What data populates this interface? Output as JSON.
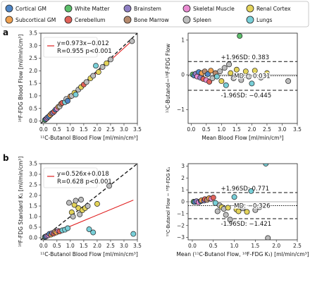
{
  "panel_labels": [
    "a",
    "b"
  ],
  "legend": [
    {
      "label": "Cortical GM",
      "color": "#4f86c6"
    },
    {
      "label": "White Matter",
      "color": "#5cbf6b"
    },
    {
      "label": "Brainstem",
      "color": "#8f7fc4"
    },
    {
      "label": "Skeletal Muscle",
      "color": "#e98bd1"
    },
    {
      "label": "Renal Cortex",
      "color": "#e3d35a"
    },
    {
      "label": "Subcortical GM",
      "color": "#f0a150"
    },
    {
      "label": "Cerebellum",
      "color": "#e0625a"
    },
    {
      "label": "Bone Marrow",
      "color": "#b58a6e"
    },
    {
      "label": "Spleen",
      "color": "#bdbdbd"
    },
    {
      "label": "Lungs",
      "color": "#78cfd8"
    }
  ],
  "chart_data": [
    {
      "id": "a-left",
      "type": "scatter",
      "xlabel": "¹¹C-Butanol Blood Flow [ml/min/cm³]",
      "ylabel": "¹⁸F-FDG Blood Flow [ml/min/cm³]",
      "xlim": [
        -0.1,
        3.5
      ],
      "ylim": [
        -0.1,
        3.5
      ],
      "xticks": [
        "0.0",
        "0.5",
        "1.0",
        "1.5",
        "2.0",
        "2.5",
        "3.0",
        "3.5"
      ],
      "yticks": [
        "0.0",
        "0.5",
        "1.0",
        "1.5",
        "2.0",
        "2.5",
        "3.0",
        "3.5"
      ],
      "identity_line": true,
      "fit": {
        "slope": 0.973,
        "intercept": -0.012
      },
      "annotation": [
        "y=0.973x−0.012",
        "R=0.955 p<0.001"
      ],
      "points": [
        {
          "x": 0.05,
          "y": 0.04,
          "c": 1
        },
        {
          "x": 0.08,
          "y": 0.07,
          "c": 0
        },
        {
          "x": 0.12,
          "y": 0.1,
          "c": 3
        },
        {
          "x": 0.15,
          "y": 0.14,
          "c": 2
        },
        {
          "x": 0.2,
          "y": 0.18,
          "c": 0
        },
        {
          "x": 0.25,
          "y": 0.24,
          "c": 5
        },
        {
          "x": 0.3,
          "y": 0.3,
          "c": 7
        },
        {
          "x": 0.35,
          "y": 0.33,
          "c": 2
        },
        {
          "x": 0.4,
          "y": 0.38,
          "c": 6
        },
        {
          "x": 0.45,
          "y": 0.45,
          "c": 0
        },
        {
          "x": 0.5,
          "y": 0.49,
          "c": 3
        },
        {
          "x": 0.55,
          "y": 0.56,
          "c": 5
        },
        {
          "x": 0.6,
          "y": 0.58,
          "c": 8
        },
        {
          "x": 0.65,
          "y": 0.68,
          "c": 7
        },
        {
          "x": 0.7,
          "y": 0.72,
          "c": 6
        },
        {
          "x": 0.8,
          "y": 0.75,
          "c": 9
        },
        {
          "x": 0.85,
          "y": 0.88,
          "c": 8
        },
        {
          "x": 0.9,
          "y": 0.8,
          "c": 0
        },
        {
          "x": 1.0,
          "y": 0.98,
          "c": 5
        },
        {
          "x": 1.05,
          "y": 1.0,
          "c": 8
        },
        {
          "x": 1.15,
          "y": 1.12,
          "c": 4
        },
        {
          "x": 1.2,
          "y": 1.05,
          "c": 9
        },
        {
          "x": 1.3,
          "y": 1.25,
          "c": 8
        },
        {
          "x": 1.4,
          "y": 1.35,
          "c": 4
        },
        {
          "x": 1.5,
          "y": 1.45,
          "c": 6
        },
        {
          "x": 1.6,
          "y": 1.55,
          "c": 8
        },
        {
          "x": 1.75,
          "y": 1.7,
          "c": 4
        },
        {
          "x": 1.85,
          "y": 1.8,
          "c": 8
        },
        {
          "x": 1.95,
          "y": 2.2,
          "c": 9
        },
        {
          "x": 2.05,
          "y": 1.95,
          "c": 4
        },
        {
          "x": 2.2,
          "y": 2.15,
          "c": 8
        },
        {
          "x": 2.35,
          "y": 2.3,
          "c": 4
        },
        {
          "x": 2.5,
          "y": 2.45,
          "c": 8
        },
        {
          "x": 3.3,
          "y": 3.18,
          "c": 8
        }
      ]
    },
    {
      "id": "a-right",
      "type": "scatter",
      "xlabel": "Mean Blood Flow [ml/min/cm³]",
      "ylabel": "¹¹C-Butanol−¹⁸F-FDG Flow",
      "xlim": [
        -0.1,
        3.5
      ],
      "ylim": [
        -1.4,
        1.2
      ],
      "xticks": [
        "0.0",
        "0.5",
        "1.0",
        "1.5",
        "2.0",
        "2.5",
        "3.0",
        "3.5"
      ],
      "yticks": [
        "−1",
        "0",
        "1"
      ],
      "hlines": {
        "upper": 0.383,
        "mean": -0.031,
        "lower": -0.445
      },
      "annotations": [
        "+1.96SD: 0.383",
        "MD: −0.031",
        "-1.96SD: −0.445"
      ],
      "points": [
        {
          "x": 0.05,
          "y": 0.01,
          "c": 1
        },
        {
          "x": 0.1,
          "y": -0.02,
          "c": 0
        },
        {
          "x": 0.15,
          "y": 0.03,
          "c": 2
        },
        {
          "x": 0.2,
          "y": -0.05,
          "c": 3
        },
        {
          "x": 0.25,
          "y": 0.08,
          "c": 0
        },
        {
          "x": 0.3,
          "y": -0.08,
          "c": 2
        },
        {
          "x": 0.35,
          "y": 0.05,
          "c": 5
        },
        {
          "x": 0.4,
          "y": -0.12,
          "c": 6
        },
        {
          "x": 0.45,
          "y": 0.1,
          "c": 7
        },
        {
          "x": 0.5,
          "y": -0.15,
          "c": 3
        },
        {
          "x": 0.55,
          "y": 0.02,
          "c": 0
        },
        {
          "x": 0.6,
          "y": -0.2,
          "c": 6
        },
        {
          "x": 0.65,
          "y": 0.12,
          "c": 5
        },
        {
          "x": 0.7,
          "y": -0.1,
          "c": 8
        },
        {
          "x": 0.8,
          "y": 0.05,
          "c": 7
        },
        {
          "x": 0.85,
          "y": -0.05,
          "c": 9
        },
        {
          "x": 0.95,
          "y": 0.1,
          "c": 8
        },
        {
          "x": 1.0,
          "y": -0.18,
          "c": 4
        },
        {
          "x": 1.1,
          "y": 0.2,
          "c": 8
        },
        {
          "x": 1.15,
          "y": -0.3,
          "c": 9
        },
        {
          "x": 1.25,
          "y": 0.3,
          "c": 8
        },
        {
          "x": 1.3,
          "y": 0.05,
          "c": 4
        },
        {
          "x": 1.4,
          "y": -0.1,
          "c": 8
        },
        {
          "x": 1.5,
          "y": 0.15,
          "c": 4
        },
        {
          "x": 1.6,
          "y": 1.12,
          "c": 1
        },
        {
          "x": 1.65,
          "y": -0.15,
          "c": 8
        },
        {
          "x": 1.8,
          "y": 0.1,
          "c": 4
        },
        {
          "x": 1.9,
          "y": -0.05,
          "c": 8
        },
        {
          "x": 2.0,
          "y": -0.25,
          "c": 9
        },
        {
          "x": 2.1,
          "y": 0.12,
          "c": 4
        },
        {
          "x": 2.3,
          "y": -0.08,
          "c": 8
        },
        {
          "x": 2.5,
          "y": 0.05,
          "c": 4
        },
        {
          "x": 3.2,
          "y": -0.18,
          "c": 8
        }
      ]
    },
    {
      "id": "b-left",
      "type": "scatter",
      "xlabel": "¹¹C-Butanol Blood Flow [ml/min/cm³]",
      "ylabel": "¹⁸F-FDG Standard K₁ [ml/min/cm³]",
      "xlim": [
        -0.1,
        3.5
      ],
      "ylim": [
        -0.1,
        3.5
      ],
      "xticks": [
        "0.0",
        "0.5",
        "1.0",
        "1.5",
        "2.0",
        "2.5",
        "3.0",
        "3.5"
      ],
      "yticks": [
        "0.0",
        "0.5",
        "1.0",
        "1.5",
        "2.0",
        "2.5",
        "3.0",
        "3.5"
      ],
      "identity_line": true,
      "fit": {
        "slope": 0.526,
        "intercept": 0.018
      },
      "annotation": [
        "y=0.526x+0.018",
        "R=0.628 p<0.001"
      ],
      "points": [
        {
          "x": 0.05,
          "y": 0.04,
          "c": 1
        },
        {
          "x": 0.08,
          "y": 0.05,
          "c": 0
        },
        {
          "x": 0.12,
          "y": 0.08,
          "c": 2
        },
        {
          "x": 0.18,
          "y": 0.12,
          "c": 3
        },
        {
          "x": 0.22,
          "y": 0.18,
          "c": 0
        },
        {
          "x": 0.28,
          "y": 0.15,
          "c": 5
        },
        {
          "x": 0.32,
          "y": 0.22,
          "c": 2
        },
        {
          "x": 0.38,
          "y": 0.2,
          "c": 6
        },
        {
          "x": 0.42,
          "y": 0.28,
          "c": 7
        },
        {
          "x": 0.48,
          "y": 0.25,
          "c": 5
        },
        {
          "x": 0.55,
          "y": 0.32,
          "c": 3
        },
        {
          "x": 0.6,
          "y": 0.3,
          "c": 6
        },
        {
          "x": 0.7,
          "y": 0.35,
          "c": 9
        },
        {
          "x": 0.8,
          "y": 0.38,
          "c": 9
        },
        {
          "x": 0.9,
          "y": 0.45,
          "c": 9
        },
        {
          "x": 0.95,
          "y": 1.65,
          "c": 8
        },
        {
          "x": 1.05,
          "y": 1.2,
          "c": 4
        },
        {
          "x": 1.1,
          "y": 1.0,
          "c": 8
        },
        {
          "x": 1.15,
          "y": 1.55,
          "c": 4
        },
        {
          "x": 1.2,
          "y": 1.75,
          "c": 8
        },
        {
          "x": 1.3,
          "y": 1.4,
          "c": 4
        },
        {
          "x": 1.35,
          "y": 1.1,
          "c": 8
        },
        {
          "x": 1.4,
          "y": 1.8,
          "c": 8
        },
        {
          "x": 1.45,
          "y": 1.3,
          "c": 4
        },
        {
          "x": 1.55,
          "y": 1.4,
          "c": 4
        },
        {
          "x": 1.65,
          "y": 1.5,
          "c": 8
        },
        {
          "x": 1.7,
          "y": 0.4,
          "c": 9
        },
        {
          "x": 1.85,
          "y": 0.25,
          "c": 9
        },
        {
          "x": 2.0,
          "y": 1.6,
          "c": 4
        },
        {
          "x": 2.45,
          "y": 2.45,
          "c": 8
        },
        {
          "x": 3.35,
          "y": 0.18,
          "c": 9
        }
      ]
    },
    {
      "id": "b-right",
      "type": "scatter",
      "xlabel": "Mean (¹¹C-Butanol Flow, ¹⁸F-FDG K₁) [ml/min/cm³]",
      "ylabel": "¹¹C-Butanol Flow − ¹⁸F-FDG K₁",
      "xlim": [
        -0.1,
        2.5
      ],
      "ylim": [
        -3.2,
        3.2
      ],
      "xticks": [
        "0.0",
        "0.5",
        "1.0",
        "1.5",
        "2.0",
        "2.5"
      ],
      "yticks": [
        "−3",
        "−2",
        "−1",
        "0",
        "1",
        "2",
        "3"
      ],
      "hlines": {
        "upper": 0.771,
        "mean": -0.326,
        "lower": -1.421
      },
      "annotations": [
        "+1.96SD: 0.771",
        "MD: −0.326",
        "-1.96SD: −1.421"
      ],
      "points": [
        {
          "x": 0.03,
          "y": 0.0,
          "c": 1
        },
        {
          "x": 0.06,
          "y": -0.02,
          "c": 0
        },
        {
          "x": 0.1,
          "y": 0.05,
          "c": 2
        },
        {
          "x": 0.15,
          "y": -0.05,
          "c": 3
        },
        {
          "x": 0.2,
          "y": 0.05,
          "c": 0
        },
        {
          "x": 0.22,
          "y": 0.12,
          "c": 5
        },
        {
          "x": 0.28,
          "y": 0.1,
          "c": 2
        },
        {
          "x": 0.3,
          "y": 0.22,
          "c": 6
        },
        {
          "x": 0.35,
          "y": 0.15,
          "c": 7
        },
        {
          "x": 0.4,
          "y": 0.3,
          "c": 5
        },
        {
          "x": 0.45,
          "y": 0.25,
          "c": 3
        },
        {
          "x": 0.5,
          "y": 0.35,
          "c": 6
        },
        {
          "x": 0.55,
          "y": -0.1,
          "c": 9
        },
        {
          "x": 0.6,
          "y": -0.8,
          "c": 8
        },
        {
          "x": 0.65,
          "y": -0.3,
          "c": 8
        },
        {
          "x": 0.7,
          "y": -0.45,
          "c": 4
        },
        {
          "x": 0.75,
          "y": -0.6,
          "c": 8
        },
        {
          "x": 0.8,
          "y": -1.1,
          "c": 8
        },
        {
          "x": 0.85,
          "y": -0.5,
          "c": 4
        },
        {
          "x": 0.9,
          "y": -1.5,
          "c": 8
        },
        {
          "x": 1.0,
          "y": 0.4,
          "c": 9
        },
        {
          "x": 1.05,
          "y": -0.65,
          "c": 4
        },
        {
          "x": 1.1,
          "y": -0.8,
          "c": 4
        },
        {
          "x": 1.2,
          "y": -0.55,
          "c": 8
        },
        {
          "x": 1.3,
          "y": -0.85,
          "c": 4
        },
        {
          "x": 1.4,
          "y": 0.9,
          "c": 9
        },
        {
          "x": 1.5,
          "y": -0.7,
          "c": 8
        },
        {
          "x": 1.6,
          "y": -0.45,
          "c": 8
        },
        {
          "x": 1.75,
          "y": 3.2,
          "c": 9
        },
        {
          "x": 1.8,
          "y": -3.05,
          "c": 8
        }
      ]
    }
  ]
}
